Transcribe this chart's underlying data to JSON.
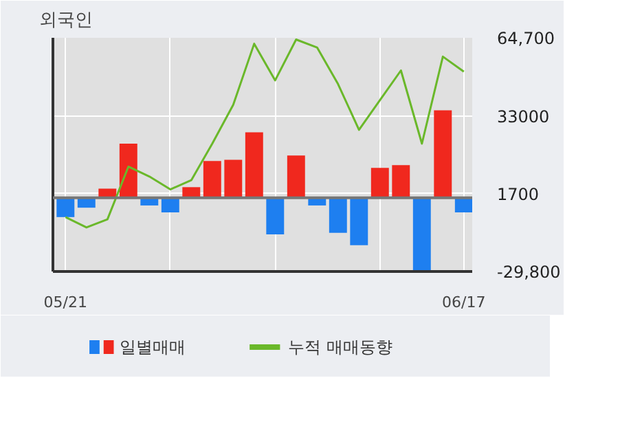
{
  "chart_data": {
    "type": "bar",
    "title": "외국인",
    "categories": [
      "05/21",
      null,
      null,
      null,
      null,
      null,
      null,
      null,
      null,
      null,
      null,
      null,
      null,
      null,
      null,
      null,
      null,
      null,
      null,
      "06/17"
    ],
    "series": [
      {
        "name": "일별매매",
        "colors": [
          "#1e7ff0",
          "#1e7ff0",
          "#f0281e",
          "#f0281e",
          "#1e7ff0",
          "#1e7ff0",
          "#f0281e",
          "#f0281e",
          "#f0281e",
          "#f0281e",
          "#1e7ff0",
          "#f0281e",
          "#1e7ff0",
          "#1e7ff0",
          "#1e7ff0",
          "#f0281e",
          "#f0281e",
          "#1e7ff0",
          "#f0281e",
          "#1e7ff0"
        ],
        "values": [
          -7800,
          -4000,
          3700,
          21900,
          -3100,
          -5900,
          4300,
          14900,
          15400,
          26500,
          -14800,
          17100,
          -3100,
          -14200,
          -19200,
          12100,
          13200,
          -29800,
          35400,
          -5900
        ]
      },
      {
        "name": "누적 매매동향",
        "type": "line",
        "color": "#6ab82a",
        "values": [
          -7800,
          -12000,
          -8700,
          12600,
          8600,
          3400,
          7100,
          21900,
          37600,
          62300,
          47500,
          64000,
          60800,
          46000,
          27500,
          39500,
          51500,
          21900,
          57100,
          51000
        ]
      }
    ],
    "ylim": [
      -29800,
      64700
    ],
    "yticks": [
      {
        "value": 64700,
        "label": "64,700"
      },
      33000,
      1700,
      {
        "value": -29800,
        "label": "-29,800"
      }
    ],
    "grid": true,
    "legend": "bottom"
  }
}
